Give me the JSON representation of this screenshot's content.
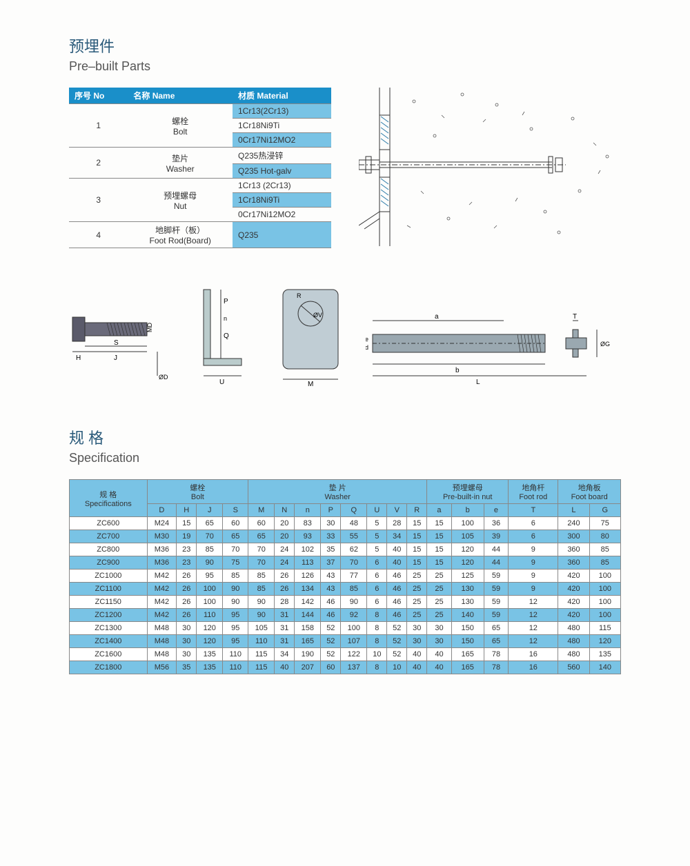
{
  "header": {
    "title_cn": "预埋件",
    "title_en": "Pre–built Parts"
  },
  "materials": {
    "headers": {
      "no": "序号 No",
      "name": "名称 Name",
      "material": "材质 Material"
    },
    "rows": [
      {
        "no": "1",
        "name_cn": "螺栓",
        "name_en": "Bolt",
        "materials": [
          "1Cr13(2Cr13)",
          "1Cr18Ni9Ti",
          "0Cr17Ni12MO2"
        ]
      },
      {
        "no": "2",
        "name_cn": "垫片",
        "name_en": "Washer",
        "materials": [
          "Q235热浸锌",
          "Q235 Hot-galv"
        ]
      },
      {
        "no": "3",
        "name_cn": "预埋螺母",
        "name_en": "Nut",
        "materials": [
          "1Cr13 (2Cr13)",
          "1Cr18Ni9Ti",
          "0Cr17Ni12MO2"
        ]
      },
      {
        "no": "4",
        "name_cn": "地脚杆（板）",
        "name_en": "Foot Rod(Board)",
        "materials": [
          "Q235"
        ]
      }
    ]
  },
  "diagrams": {
    "bolt_labels": [
      "H",
      "J",
      "S",
      "MD",
      "ØD"
    ],
    "washer_labels": [
      "U",
      "P",
      "Q",
      "n",
      "ØV",
      "M",
      "R"
    ],
    "rod_labels": [
      "a",
      "b",
      "L",
      "T",
      "Øe",
      "Ød",
      "ØG"
    ]
  },
  "spec_header": {
    "title_cn": "规 格",
    "title_en": "Specification"
  },
  "spec": {
    "group_labels": {
      "spec_cn": "规 格",
      "spec_en": "Specifications",
      "bolt_cn": "螺栓",
      "bolt_en": "Bolt",
      "washer_cn": "垫 片",
      "washer_en": "Washer",
      "nut_cn": "预埋螺母",
      "nut_en": "Pre-built-in nut",
      "rod_cn": "地角杆",
      "rod_en": "Foot rod",
      "board_cn": "地角板",
      "board_en": "Foot board"
    },
    "columns": [
      "D",
      "H",
      "J",
      "S",
      "M",
      "N",
      "n",
      "P",
      "Q",
      "U",
      "V",
      "R",
      "a",
      "b",
      "e",
      "T",
      "L",
      "G"
    ],
    "rows": [
      [
        "ZC600",
        "M24",
        "15",
        "65",
        "60",
        "60",
        "20",
        "83",
        "30",
        "48",
        "5",
        "28",
        "15",
        "15",
        "100",
        "36",
        "6",
        "240",
        "75"
      ],
      [
        "ZC700",
        "M30",
        "19",
        "70",
        "65",
        "65",
        "20",
        "93",
        "33",
        "55",
        "5",
        "34",
        "15",
        "15",
        "105",
        "39",
        "6",
        "300",
        "80"
      ],
      [
        "ZC800",
        "M36",
        "23",
        "85",
        "70",
        "70",
        "24",
        "102",
        "35",
        "62",
        "5",
        "40",
        "15",
        "15",
        "120",
        "44",
        "9",
        "360",
        "85"
      ],
      [
        "ZC900",
        "M36",
        "23",
        "90",
        "75",
        "70",
        "24",
        "113",
        "37",
        "70",
        "6",
        "40",
        "15",
        "15",
        "120",
        "44",
        "9",
        "360",
        "85"
      ],
      [
        "ZC1000",
        "M42",
        "26",
        "95",
        "85",
        "85",
        "26",
        "126",
        "43",
        "77",
        "6",
        "46",
        "25",
        "25",
        "125",
        "59",
        "9",
        "420",
        "100"
      ],
      [
        "ZC1100",
        "M42",
        "26",
        "100",
        "90",
        "85",
        "26",
        "134",
        "43",
        "85",
        "6",
        "46",
        "25",
        "25",
        "130",
        "59",
        "9",
        "420",
        "100"
      ],
      [
        "ZC1150",
        "M42",
        "26",
        "100",
        "90",
        "90",
        "28",
        "142",
        "46",
        "90",
        "6",
        "46",
        "25",
        "25",
        "130",
        "59",
        "12",
        "420",
        "100"
      ],
      [
        "ZC1200",
        "M42",
        "26",
        "110",
        "95",
        "90",
        "31",
        "144",
        "46",
        "92",
        "8",
        "46",
        "25",
        "25",
        "140",
        "59",
        "12",
        "420",
        "100"
      ],
      [
        "ZC1300",
        "M48",
        "30",
        "120",
        "95",
        "105",
        "31",
        "158",
        "52",
        "100",
        "8",
        "52",
        "30",
        "30",
        "150",
        "65",
        "12",
        "480",
        "115"
      ],
      [
        "ZC1400",
        "M48",
        "30",
        "120",
        "95",
        "110",
        "31",
        "165",
        "52",
        "107",
        "8",
        "52",
        "30",
        "30",
        "150",
        "65",
        "12",
        "480",
        "120"
      ],
      [
        "ZC1600",
        "M48",
        "30",
        "135",
        "110",
        "115",
        "34",
        "190",
        "52",
        "122",
        "10",
        "52",
        "40",
        "40",
        "165",
        "78",
        "16",
        "480",
        "135"
      ],
      [
        "ZC1800",
        "M56",
        "35",
        "135",
        "110",
        "115",
        "40",
        "207",
        "60",
        "137",
        "8",
        "10",
        "40",
        "40",
        "165",
        "78",
        "16",
        "560",
        "140"
      ]
    ]
  },
  "colors": {
    "header_blue": "#1a8fc9",
    "row_blue": "#79c3e5",
    "background": "#fdfdfc",
    "title_color": "#2a5a7a"
  }
}
